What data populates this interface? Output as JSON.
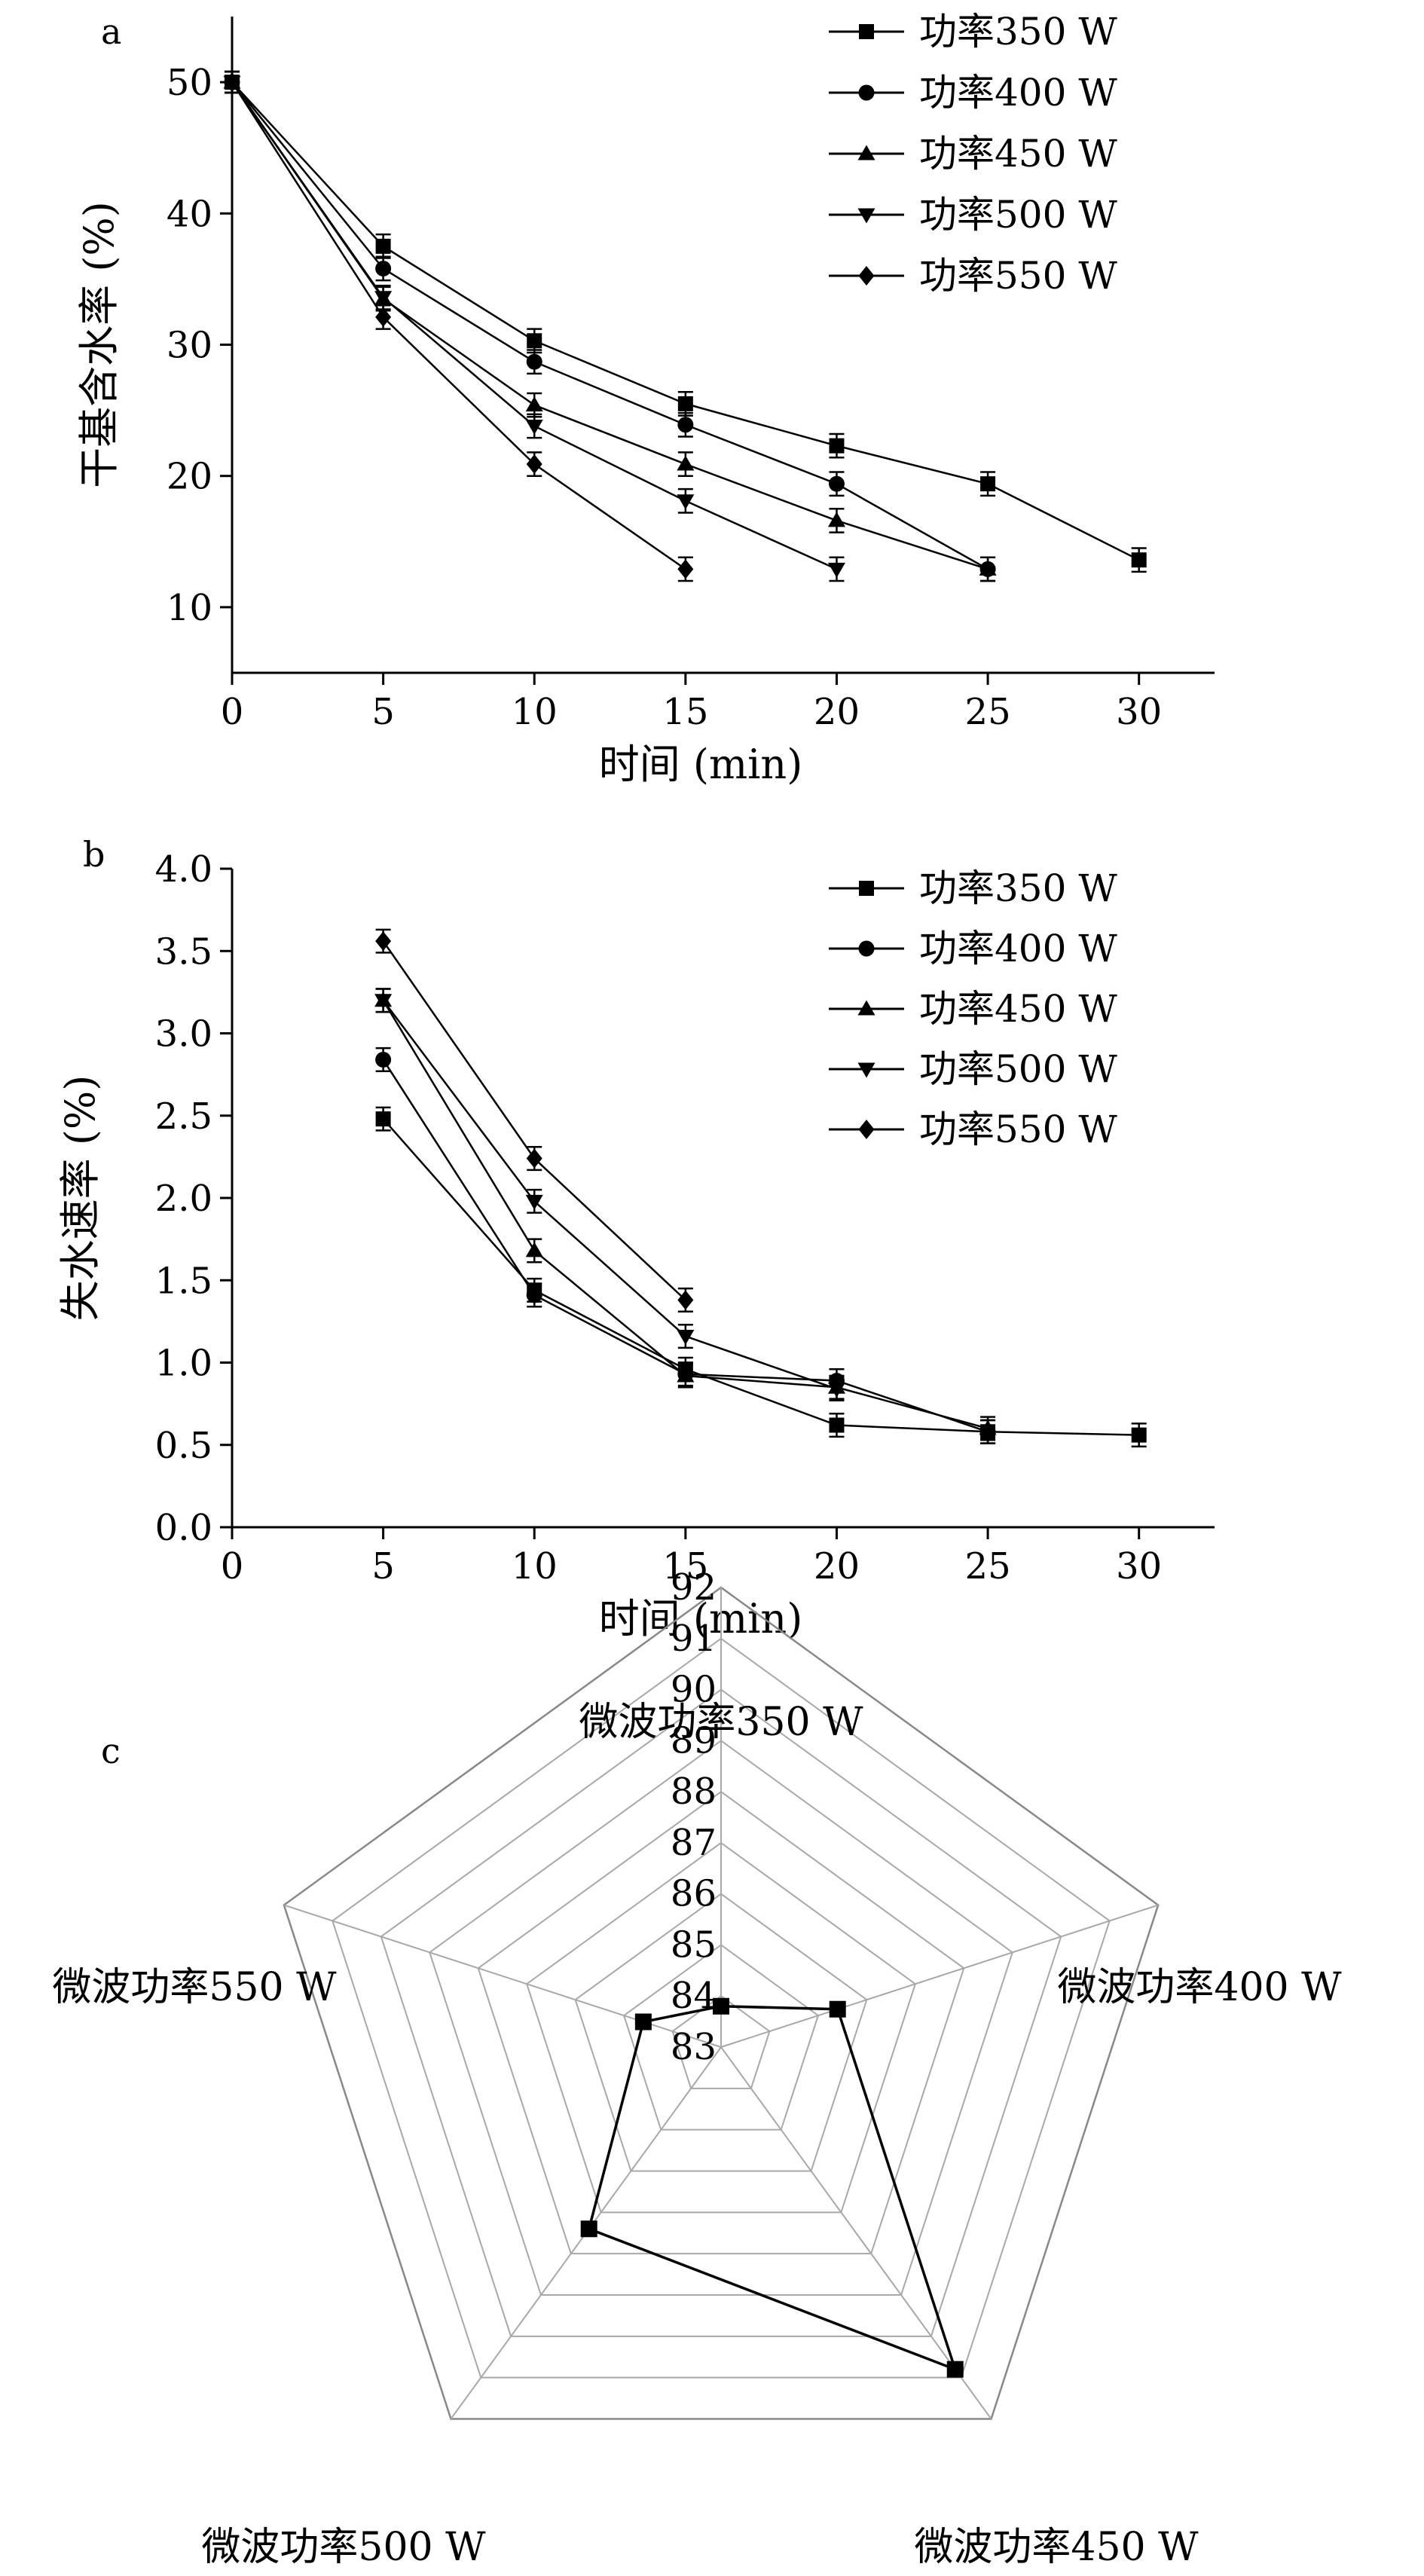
{
  "chart_data": [
    {
      "panel": "a",
      "type": "line",
      "xlabel": "时间 (min)",
      "ylabel": "干基含水率 (%)",
      "xlim": [
        0,
        32.5
      ],
      "ylim": [
        5,
        55
      ],
      "xticks": [
        0,
        5,
        10,
        15,
        20,
        25,
        30
      ],
      "yticks": [
        10,
        20,
        30,
        40,
        50
      ],
      "legend_position": "top-right",
      "series": [
        {
          "name": "功率350 W",
          "marker": "square",
          "x": [
            0,
            5,
            10,
            15,
            20,
            25,
            30
          ],
          "y": [
            50.0,
            37.5,
            30.3,
            25.5,
            22.3,
            19.4,
            13.6
          ],
          "err": [
            0.8,
            0.9,
            0.9,
            0.9,
            0.9,
            0.9,
            0.9
          ]
        },
        {
          "name": "功率400 W",
          "marker": "circle",
          "x": [
            0,
            5,
            10,
            15,
            20,
            25
          ],
          "y": [
            50.0,
            35.8,
            28.7,
            23.9,
            19.4,
            12.9
          ],
          "err": [
            0.8,
            0.9,
            0.9,
            0.9,
            0.9,
            0.9
          ]
        },
        {
          "name": "功率450 W",
          "marker": "triangle-up",
          "x": [
            0,
            5,
            10,
            15,
            20,
            25
          ],
          "y": [
            50.0,
            33.5,
            25.4,
            20.9,
            16.6,
            12.9
          ],
          "err": [
            0.8,
            0.9,
            0.9,
            0.9,
            0.9,
            0.9
          ]
        },
        {
          "name": "功率500 W",
          "marker": "triangle-down",
          "x": [
            0,
            5,
            10,
            15,
            20
          ],
          "y": [
            50.0,
            33.6,
            23.8,
            18.1,
            12.9
          ],
          "err": [
            0.8,
            0.9,
            0.9,
            0.9,
            0.9
          ]
        },
        {
          "name": "功率550 W",
          "marker": "diamond",
          "x": [
            0,
            5,
            10,
            15
          ],
          "y": [
            50.0,
            32.1,
            20.9,
            12.9
          ],
          "err": [
            0.8,
            0.9,
            0.9,
            0.9
          ]
        }
      ]
    },
    {
      "panel": "b",
      "type": "line",
      "xlabel": "时间 (min)",
      "ylabel": "失水速率 (%)",
      "xlim": [
        0,
        32.5
      ],
      "ylim": [
        0,
        4.0
      ],
      "xticks": [
        0,
        5,
        10,
        15,
        20,
        25,
        30
      ],
      "yticks": [
        0.0,
        0.5,
        1.0,
        1.5,
        2.0,
        2.5,
        3.0,
        3.5,
        4.0
      ],
      "legend_position": "top-right",
      "series": [
        {
          "name": "功率350 W",
          "marker": "square",
          "x": [
            5,
            10,
            15,
            20,
            25,
            30
          ],
          "y": [
            2.48,
            1.44,
            0.96,
            0.62,
            0.58,
            0.56
          ],
          "err": [
            0.07,
            0.07,
            0.07,
            0.07,
            0.07,
            0.07
          ]
        },
        {
          "name": "功率400 W",
          "marker": "circle",
          "x": [
            5,
            10,
            15,
            20,
            25
          ],
          "y": [
            2.84,
            1.41,
            0.93,
            0.89,
            0.58
          ],
          "err": [
            0.07,
            0.07,
            0.07,
            0.07,
            0.07
          ]
        },
        {
          "name": "功率450 W",
          "marker": "triangle-up",
          "x": [
            5,
            10,
            15,
            20,
            25
          ],
          "y": [
            3.2,
            1.68,
            0.92,
            0.85,
            0.6
          ],
          "err": [
            0.07,
            0.07,
            0.07,
            0.07,
            0.07
          ]
        },
        {
          "name": "功率500 W",
          "marker": "triangle-down",
          "x": [
            5,
            10,
            15,
            20
          ],
          "y": [
            3.2,
            1.98,
            1.16,
            0.84
          ],
          "err": [
            0.07,
            0.07,
            0.07,
            0.07
          ]
        },
        {
          "name": "功率550 W",
          "marker": "diamond",
          "x": [
            5,
            10,
            15
          ],
          "y": [
            3.56,
            2.24,
            1.38
          ],
          "err": [
            0.07,
            0.07,
            0.07
          ]
        }
      ]
    },
    {
      "panel": "c",
      "type": "radar",
      "range": [
        83,
        92
      ],
      "ticks": [
        83,
        84,
        85,
        86,
        87,
        88,
        89,
        90,
        91,
        92
      ],
      "axes": [
        "微波功率350 W",
        "微波功率400 W",
        "微波功率450 W",
        "微波功率500 W",
        "微波功率550 W"
      ],
      "values": [
        83.8,
        85.4,
        90.8,
        87.4,
        84.6
      ]
    }
  ]
}
